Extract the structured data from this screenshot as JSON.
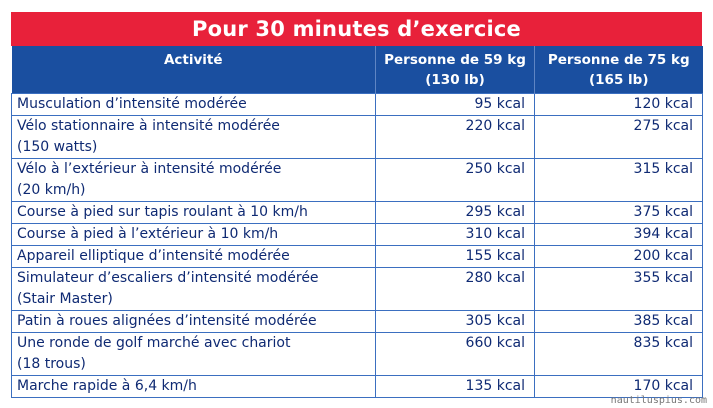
{
  "title": "Pour 30 minutes d’exercice",
  "headers": {
    "activity": "Activité",
    "col59_line1": "Personne de 59 kg",
    "col59_line2": "(130 lb)",
    "col75_line1": "Personne de 75 kg",
    "col75_line2": "(165 lb)"
  },
  "rows": [
    {
      "activity": [
        "Musculation d’intensité modérée"
      ],
      "kg59": "95 kcal",
      "kg75": "120 kcal"
    },
    {
      "activity": [
        "Vélo stationnaire à intensité modérée",
        "(150 watts)"
      ],
      "kg59": "220 kcal",
      "kg75": "275 kcal"
    },
    {
      "activity": [
        "Vélo à l’extérieur à intensité modérée",
        "(20 km/h)"
      ],
      "kg59": "250 kcal",
      "kg75": "315 kcal"
    },
    {
      "activity": [
        "Course à pied sur tapis roulant à 10 km/h"
      ],
      "kg59": "295 kcal",
      "kg75": "375 kcal"
    },
    {
      "activity": [
        "Course à pied à l’extérieur à 10 km/h"
      ],
      "kg59": "310 kcal",
      "kg75": "394 kcal"
    },
    {
      "activity": [
        "Appareil elliptique d’intensité modérée"
      ],
      "kg59": "155 kcal",
      "kg75": "200 kcal"
    },
    {
      "activity": [
        "Simulateur d’escaliers d’intensité modérée",
        "(Stair Master)"
      ],
      "kg59": "280 kcal",
      "kg75": "355 kcal"
    },
    {
      "activity": [
        "Patin à roues alignées d’intensité modérée"
      ],
      "kg59": "305 kcal",
      "kg75": "385 kcal"
    },
    {
      "activity": [
        "Une ronde de golf marché avec chariot",
        "(18 trous)"
      ],
      "kg59": "660 kcal",
      "kg75": "835 kcal"
    },
    {
      "activity": [
        "Marche rapide à 6,4 km/h"
      ],
      "kg59": "135 kcal",
      "kg75": "170 kcal"
    }
  ],
  "watermark": "nautiluspius.com"
}
